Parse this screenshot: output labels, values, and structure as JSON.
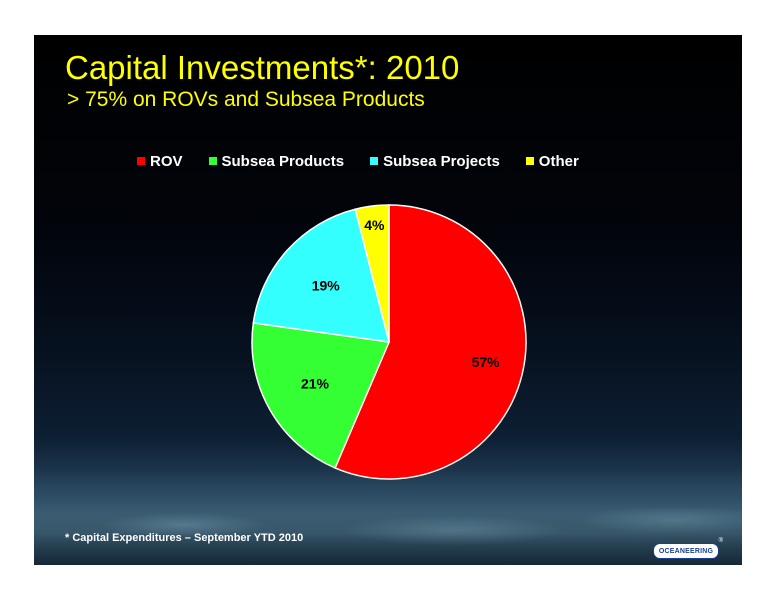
{
  "slide": {
    "title": "Capital Investments*:  2010",
    "subtitle": "> 75% on ROVs and Subsea Products",
    "footnote": "* Capital Expenditures – September YTD 2010",
    "logo_text": "OCEANEERING",
    "logo_mark": "®"
  },
  "chart_data": {
    "type": "pie",
    "start_angle_deg": 0,
    "direction": "clockwise",
    "legend_position": "top",
    "slices": [
      {
        "name": "ROV",
        "value": 57,
        "label": "57%",
        "color": "#ff0000"
      },
      {
        "name": "Subsea Products",
        "value": 21,
        "label": "21%",
        "color": "#33ff33"
      },
      {
        "name": "Subsea Projects",
        "value": 19,
        "label": "19%",
        "color": "#33ffff"
      },
      {
        "name": "Other",
        "value": 4,
        "label": "4%",
        "color": "#ffff00"
      }
    ]
  }
}
